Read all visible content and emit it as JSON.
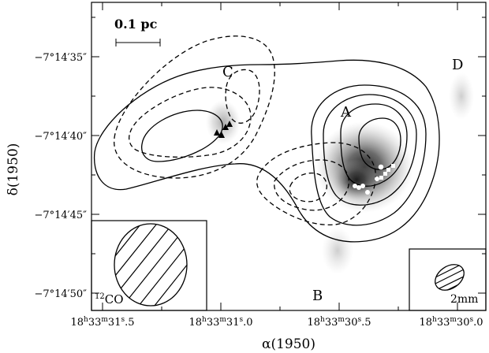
{
  "labels": {
    "scale_bar": "0.1 pc",
    "region_a": "A",
    "region_b": "B",
    "region_c": "C",
    "region_d": "D",
    "beam_left": "12CO",
    "beam_left_sup": "12",
    "beam_left_text": "CO",
    "beam_right": "2mm"
  },
  "axes": {
    "xlabel": "α(1950)",
    "ylabel": "δ(1950)",
    "x_ticks": [
      {
        "h": "18",
        "m": "33",
        "s": "31",
        "frac": ".5"
      },
      {
        "h": "18",
        "m": "33",
        "s": "31",
        "frac": ".0"
      },
      {
        "h": "18",
        "m": "33",
        "s": "30",
        "frac": ".5"
      },
      {
        "h": "18",
        "m": "33",
        "s": "30",
        "frac": ".0"
      }
    ],
    "y_ticks": [
      "−7°14′35″",
      "−7°14′40″",
      "−7°14′45″",
      "−7°14′50″"
    ]
  },
  "colors": {
    "ink": "#000000",
    "background": "#ffffff",
    "emission_peak": "#1a1a1a"
  }
}
